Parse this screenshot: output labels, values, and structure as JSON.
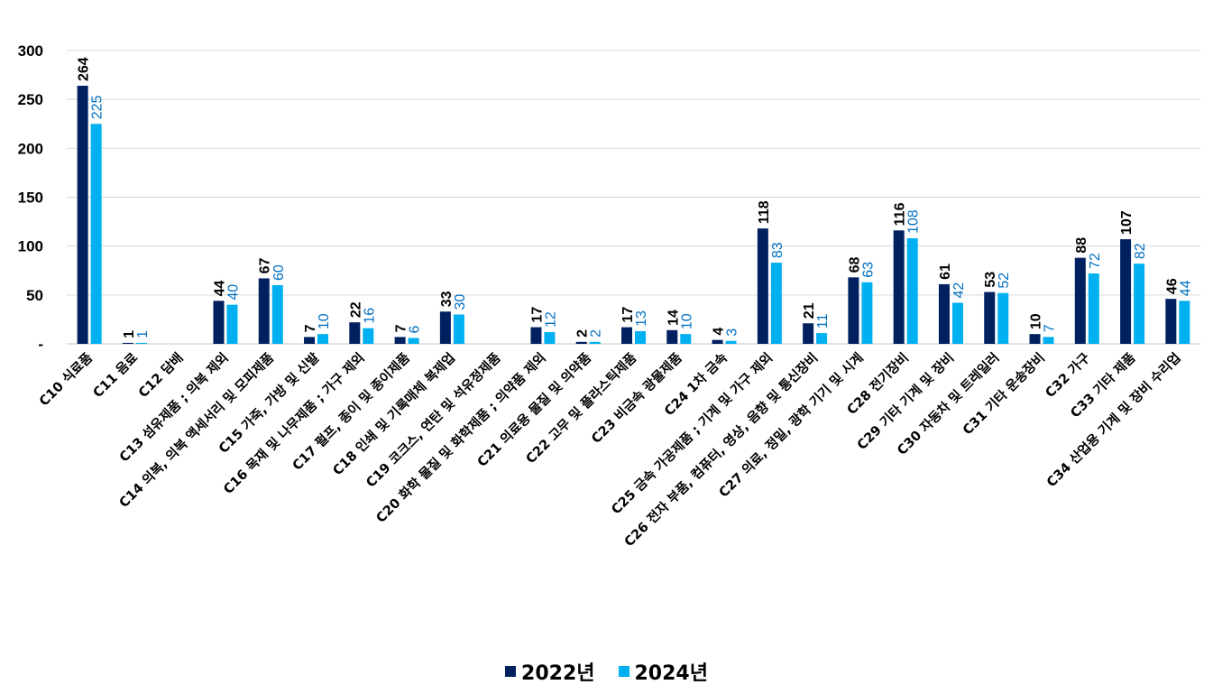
{
  "chart_data": {
    "type": "bar",
    "title": "",
    "xlabel": "",
    "ylabel": "",
    "ylim": [
      0,
      300
    ],
    "yticks": [
      0,
      50,
      100,
      150,
      200,
      250,
      300
    ],
    "ytick_labels": [
      "-",
      "50",
      "100",
      "150",
      "200",
      "250",
      "300"
    ],
    "grid": true,
    "legend_position": "bottom",
    "categories": [
      "C10 식료품",
      "C11 음료",
      "C12 담배",
      "C13 섬유제품 ; 의복 제외",
      "C14 의복, 의복 액세서리 및 모피제품",
      "C15 가죽, 가방 및 신발",
      "C16 목재 및 나무제품 ; 가구 제외",
      "C17 펄프, 종이 및 종이제품",
      "C18 인쇄 및 기록매체 복제업",
      "C19 코크스, 연탄 및 석유정제품",
      "C20 화학 물질 및 화학제품 ; 의약품 제외",
      "C21 의료용 물질 및 의약품",
      "C22 고무 및 플라스틱제품",
      "C23 비금속 광물제품",
      "C24 1차 금속",
      "C25 금속 가공제품 ; 기계 및 가구 제외",
      "C26 전자 부품, 컴퓨터, 영상, 음향 및 통신장비",
      "C27 의료, 정밀, 광학 기기 및 시계",
      "C28 전기장비",
      "C29 기타 기계 및 장비",
      "C30 자동차 및 트레일러",
      "C31 기타 운송장비",
      "C32 가구",
      "C33 기타 제품",
      "C34 산업용 기계 및 장비 수리업"
    ],
    "series": [
      {
        "name": "2022년",
        "color": "#002060",
        "label_color": "#000000",
        "values": [
          264,
          1,
          null,
          44,
          67,
          7,
          22,
          7,
          33,
          null,
          17,
          2,
          17,
          14,
          4,
          118,
          21,
          68,
          116,
          61,
          53,
          10,
          88,
          107,
          46
        ]
      },
      {
        "name": "2024년",
        "color": "#00B0F0",
        "label_color": "#0070C0",
        "values": [
          225,
          1,
          null,
          40,
          60,
          10,
          16,
          6,
          30,
          null,
          12,
          2,
          13,
          10,
          3,
          83,
          11,
          63,
          108,
          42,
          52,
          7,
          72,
          82,
          44
        ]
      }
    ]
  }
}
